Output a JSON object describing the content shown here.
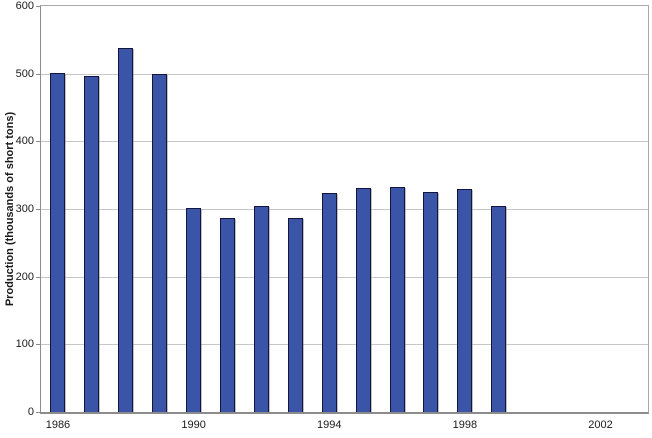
{
  "chart_data": {
    "type": "bar",
    "title": "",
    "xlabel": "",
    "ylabel": "Production (thousands of short tons)",
    "categories": [
      1986,
      1987,
      1988,
      1989,
      1990,
      1991,
      1992,
      1993,
      1994,
      1995,
      1996,
      1997,
      1998,
      1999
    ],
    "values": [
      501,
      496,
      538,
      499,
      301,
      286,
      304,
      287,
      324,
      331,
      333,
      325,
      330,
      305
    ],
    "series_name": "Production",
    "x_tick_labels": [
      "1986",
      "1990",
      "1994",
      "1998",
      "2002"
    ],
    "x_tick_years": [
      1986,
      1990,
      1994,
      1998,
      2002
    ],
    "x_range": [
      1985.5,
      2003.4
    ],
    "ylim": [
      0,
      600
    ],
    "y_ticks": [
      0,
      100,
      200,
      300,
      400,
      500,
      600
    ],
    "grid": "horizontal",
    "legend": "none",
    "colors": {
      "bar_fill": "#3A55A8",
      "bar_border": "#14143C",
      "gridline": "#C6C6C6",
      "axis": "#8C8C8C",
      "text": "#1A1A1A",
      "background": "#FFFFFF"
    }
  }
}
